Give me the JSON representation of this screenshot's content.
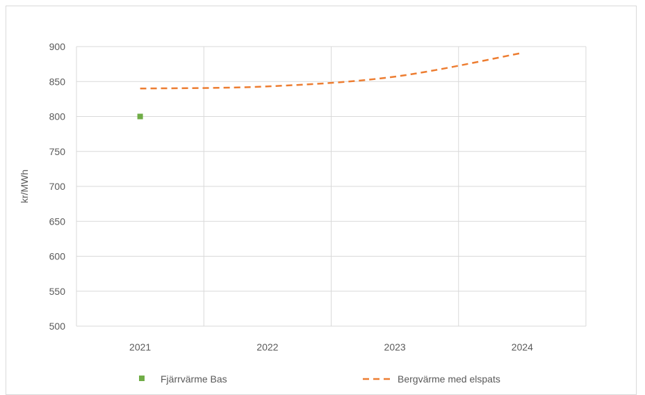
{
  "chart_data": {
    "type": "line",
    "title": "",
    "xlabel": "",
    "ylabel": "kr/MWh",
    "categories": [
      "2021",
      "2022",
      "2023",
      "2024"
    ],
    "ylim": [
      500,
      900
    ],
    "yticks": [
      500,
      550,
      600,
      650,
      700,
      750,
      800,
      850,
      900
    ],
    "grid": true,
    "legend_position": "bottom",
    "series": [
      {
        "name": "Fjärrvärme Bas",
        "style": "marker",
        "color": "#70ad47",
        "values": [
          800,
          null,
          null,
          null
        ]
      },
      {
        "name": "Bergvärme med elspats",
        "style": "dashed-line",
        "color": "#ed7d31",
        "values": [
          840,
          843,
          857,
          891
        ]
      }
    ]
  }
}
